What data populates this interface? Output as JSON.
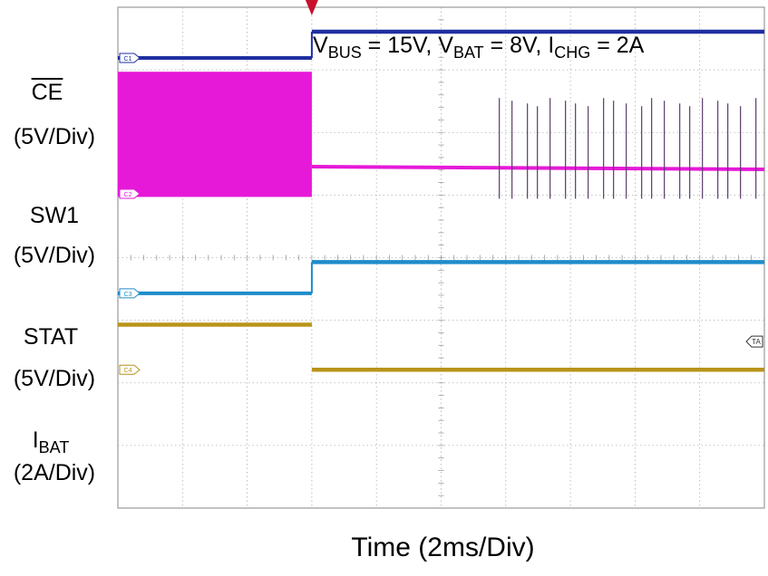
{
  "chart_data": {
    "type": "line",
    "title_parts": {
      "v_bus_sym": "V",
      "v_bus_sub": "BUS",
      "v_bus_val": " = 15V, ",
      "v_bat_sym": "V",
      "v_bat_sub": "BAT",
      "v_bat_val": " = 8V, ",
      "i_chg_sym": "I",
      "i_chg_sub": "CHG",
      "i_chg_val": " = 2A"
    },
    "xlabel": "Time (2ms/Div)",
    "x_divisions": 10,
    "y_divisions": 8,
    "grid": true,
    "trigger_time_div": 3,
    "channels": [
      {
        "name": "CE",
        "scale": "(5V/Div)",
        "color": "#1f2fa0",
        "marker": "C1",
        "low_div": 7.19,
        "high_div": 7.61,
        "step_at_div": 3
      },
      {
        "name": "SW1",
        "scale": "(5V/Div)",
        "color": "#e619d8",
        "marker": "C2",
        "burst_low_div": 4.97,
        "burst_high_div": 6.97,
        "settle_div": 5.41,
        "pulse_start_div": 5.9,
        "pulse_top_div": 6.55,
        "pulse_bottom_div": 4.97
      },
      {
        "name": "STAT",
        "scale": "(5V/Div)",
        "color": "#1e8ccc",
        "marker": "C3",
        "high_div": 3.93,
        "low_div": 3.43,
        "step_at_div": 3
      },
      {
        "name": "BAT",
        "sym": "I",
        "scale": "(2A/Div)",
        "color": "#b8941a",
        "marker": "C4",
        "before_div": 2.93,
        "after_div": 2.21,
        "step_at_div": 3
      }
    ],
    "trigger_marker": "TA"
  }
}
